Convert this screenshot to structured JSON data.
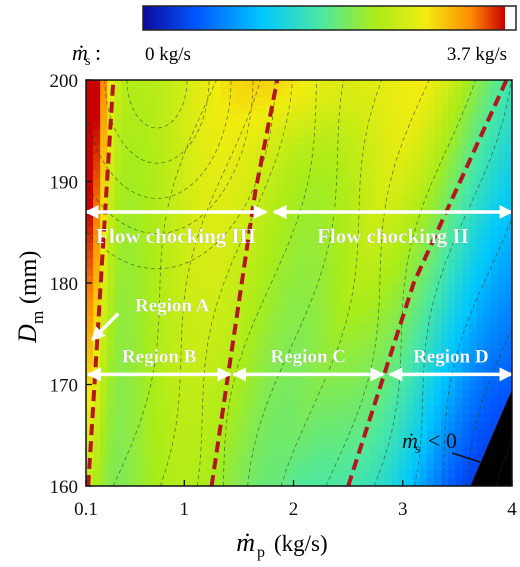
{
  "colorbar": {
    "symbol": "ṁ",
    "subscript": "s",
    "separator": ":",
    "min_label": "0 kg/s",
    "max_label": "3.7 kg/s",
    "colors": [
      "#0b0b9a",
      "#0055ff",
      "#00c8ff",
      "#4de8a0",
      "#a8ec1a",
      "#f1ec10",
      "#ff8a00",
      "#c80000",
      "#ffffff"
    ]
  },
  "chart_data": {
    "type": "heatmap",
    "x": {
      "symbol": "ṁ",
      "subscript": "p",
      "unit": "(kg/s)",
      "range": [
        0.1,
        4.0
      ],
      "ticks": [
        0.1,
        1,
        2,
        3,
        4
      ],
      "tick_labels": [
        "0.1",
        "1",
        "2",
        "3",
        "4"
      ]
    },
    "y": {
      "symbol": "D",
      "subscript": "m",
      "unit": "(mm)",
      "range": [
        160,
        200
      ],
      "ticks": [
        160,
        170,
        180,
        190,
        200
      ],
      "tick_labels": [
        "160",
        "170",
        "180",
        "190",
        "200"
      ]
    },
    "z": {
      "symbol": "ṁ",
      "subscript": "s",
      "min": 0,
      "max": 3.7,
      "unit": "kg/s"
    },
    "boundaries": [
      {
        "points": [
          [
            0.12,
            160
          ],
          [
            0.35,
            200
          ]
        ]
      },
      {
        "points": [
          [
            1.25,
            160
          ],
          [
            1.65,
            189
          ],
          [
            1.85,
            200
          ]
        ]
      },
      {
        "points": [
          [
            2.5,
            160
          ],
          [
            3.1,
            180
          ],
          [
            3.95,
            200
          ]
        ]
      }
    ],
    "annotations": {
      "flow_chocking_3": {
        "text": "Flow chocking III",
        "x_range": [
          0.1,
          1.75
        ],
        "y": 187
      },
      "flow_chocking_2": {
        "text": "Flow chocking II",
        "x_range": [
          1.82,
          4.0
        ],
        "y": 187
      },
      "region_a": {
        "text": "Region A",
        "x": 0.45,
        "y": 176.6,
        "arrow_to": [
          0.1,
          173.8
        ]
      },
      "region_b": {
        "text": "Region B",
        "x_range": [
          0.12,
          1.42
        ],
        "y": 171
      },
      "region_c": {
        "text": "Region C",
        "x_range": [
          1.45,
          2.82
        ],
        "y": 171
      },
      "region_d": {
        "text": "Region D",
        "x_range": [
          2.88,
          4.0
        ],
        "y": 171
      },
      "negative": {
        "symbol": "ṁ",
        "subscript": "s",
        "text": "< 0"
      }
    }
  }
}
